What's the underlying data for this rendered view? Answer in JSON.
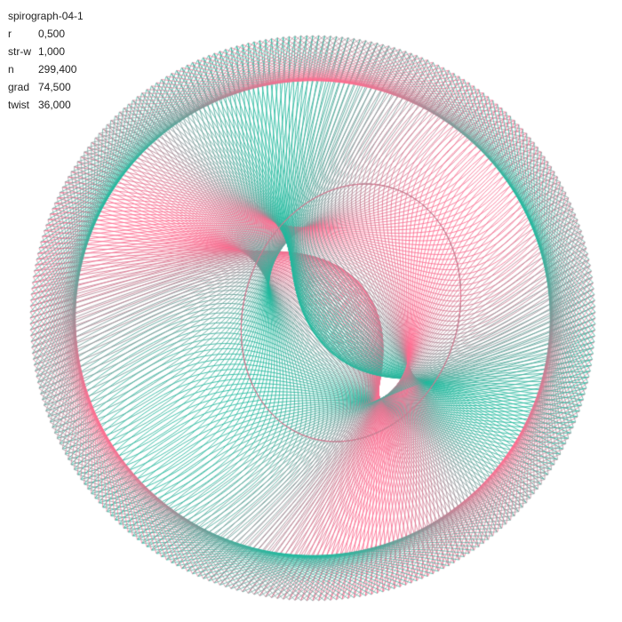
{
  "title": "spirograph-04-1",
  "params": [
    {
      "name": "r",
      "value": "0,500"
    },
    {
      "name": "str-w",
      "value": "1,000"
    },
    {
      "name": "n",
      "value": "299,400"
    },
    {
      "name": "grad",
      "value": "74,500"
    },
    {
      "name": "twist",
      "value": "36,000"
    }
  ],
  "colors": {
    "background": "#ffffff",
    "pink": "#ff6b8f",
    "teal": "#1fb89c",
    "text": "#222222"
  }
}
